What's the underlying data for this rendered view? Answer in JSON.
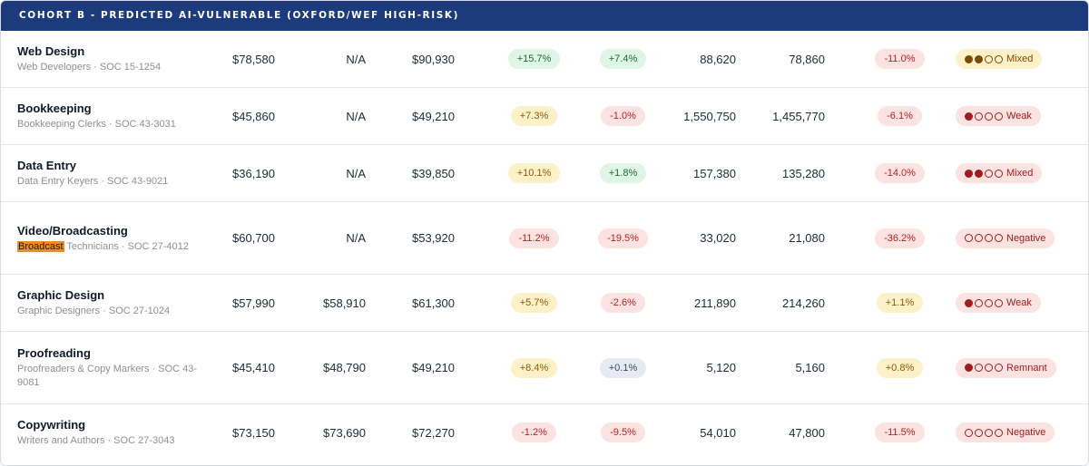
{
  "header": {
    "title": "COHORT B - PREDICTED AI-VULNERABLE (OXFORD/WEF HIGH-RISK)"
  },
  "rows": [
    {
      "title": "Web Design",
      "sub_pre": "",
      "sub_hl": "",
      "sub": "Web Developers · SOC 15-1254",
      "wage1": "$78,580",
      "wage2": "N/A",
      "wage3": "$90,930",
      "pill1": {
        "text": "+15.7%",
        "tone": "green"
      },
      "pill2": {
        "text": "+7.4%",
        "tone": "green"
      },
      "emp1": "88,620",
      "emp2": "78,860",
      "pill3": {
        "text": "-11.0%",
        "tone": "red"
      },
      "signal": {
        "label": "Mixed",
        "filled": 2,
        "tone": "yellow"
      }
    },
    {
      "title": "Bookkeeping",
      "sub_pre": "",
      "sub_hl": "",
      "sub": "Bookkeeping Clerks · SOC 43-3031",
      "wage1": "$45,860",
      "wage2": "N/A",
      "wage3": "$49,210",
      "pill1": {
        "text": "+7.3%",
        "tone": "yellow"
      },
      "pill2": {
        "text": "-1.0%",
        "tone": "red"
      },
      "emp1": "1,550,750",
      "emp2": "1,455,770",
      "pill3": {
        "text": "-6.1%",
        "tone": "red"
      },
      "signal": {
        "label": "Weak",
        "filled": 1,
        "tone": "red"
      }
    },
    {
      "title": "Data Entry",
      "sub_pre": "",
      "sub_hl": "",
      "sub": "Data Entry Keyers · SOC 43-9021",
      "wage1": "$36,190",
      "wage2": "N/A",
      "wage3": "$39,850",
      "pill1": {
        "text": "+10.1%",
        "tone": "yellow"
      },
      "pill2": {
        "text": "+1.8%",
        "tone": "green"
      },
      "emp1": "157,380",
      "emp2": "135,280",
      "pill3": {
        "text": "-14.0%",
        "tone": "red"
      },
      "signal": {
        "label": "Mixed",
        "filled": 2,
        "tone": "red"
      }
    },
    {
      "title": "Video/Broadcasting",
      "sub_pre": "",
      "sub_hl": "Broadcast",
      "sub": " Technicians · SOC 27-4012",
      "wage1": "$60,700",
      "wage2": "N/A",
      "wage3": "$53,920",
      "pill1": {
        "text": "-11.2%",
        "tone": "red"
      },
      "pill2": {
        "text": "-19.5%",
        "tone": "red"
      },
      "emp1": "33,020",
      "emp2": "21,080",
      "pill3": {
        "text": "-36.2%",
        "tone": "red"
      },
      "signal": {
        "label": "Negative",
        "filled": 0,
        "tone": "red"
      }
    },
    {
      "title": "Graphic Design",
      "sub_pre": "",
      "sub_hl": "",
      "sub": "Graphic Designers · SOC 27-1024",
      "wage1": "$57,990",
      "wage2": "$58,910",
      "wage3": "$61,300",
      "pill1": {
        "text": "+5.7%",
        "tone": "yellow"
      },
      "pill2": {
        "text": "-2.6%",
        "tone": "red"
      },
      "emp1": "211,890",
      "emp2": "214,260",
      "pill3": {
        "text": "+1.1%",
        "tone": "yellow"
      },
      "signal": {
        "label": "Weak",
        "filled": 1,
        "tone": "red"
      }
    },
    {
      "title": "Proofreading",
      "sub_pre": "",
      "sub_hl": "",
      "sub": "Proofreaders & Copy Markers · SOC 43-9081",
      "wage1": "$45,410",
      "wage2": "$48,790",
      "wage3": "$49,210",
      "pill1": {
        "text": "+8.4%",
        "tone": "yellow"
      },
      "pill2": {
        "text": "+0.1%",
        "tone": "blue"
      },
      "emp1": "5,120",
      "emp2": "5,160",
      "pill3": {
        "text": "+0.8%",
        "tone": "yellow"
      },
      "signal": {
        "label": "Remnant",
        "filled": 1,
        "tone": "red"
      }
    },
    {
      "title": "Copywriting",
      "sub_pre": "",
      "sub_hl": "",
      "sub": "Writers and Authors · SOC 27-3043",
      "wage1": "$73,150",
      "wage2": "$73,690",
      "wage3": "$72,270",
      "pill1": {
        "text": "-1.2%",
        "tone": "red"
      },
      "pill2": {
        "text": "-9.5%",
        "tone": "red"
      },
      "emp1": "54,010",
      "emp2": "47,800",
      "pill3": {
        "text": "-11.5%",
        "tone": "red"
      },
      "signal": {
        "label": "Negative",
        "filled": 0,
        "tone": "red"
      }
    }
  ]
}
